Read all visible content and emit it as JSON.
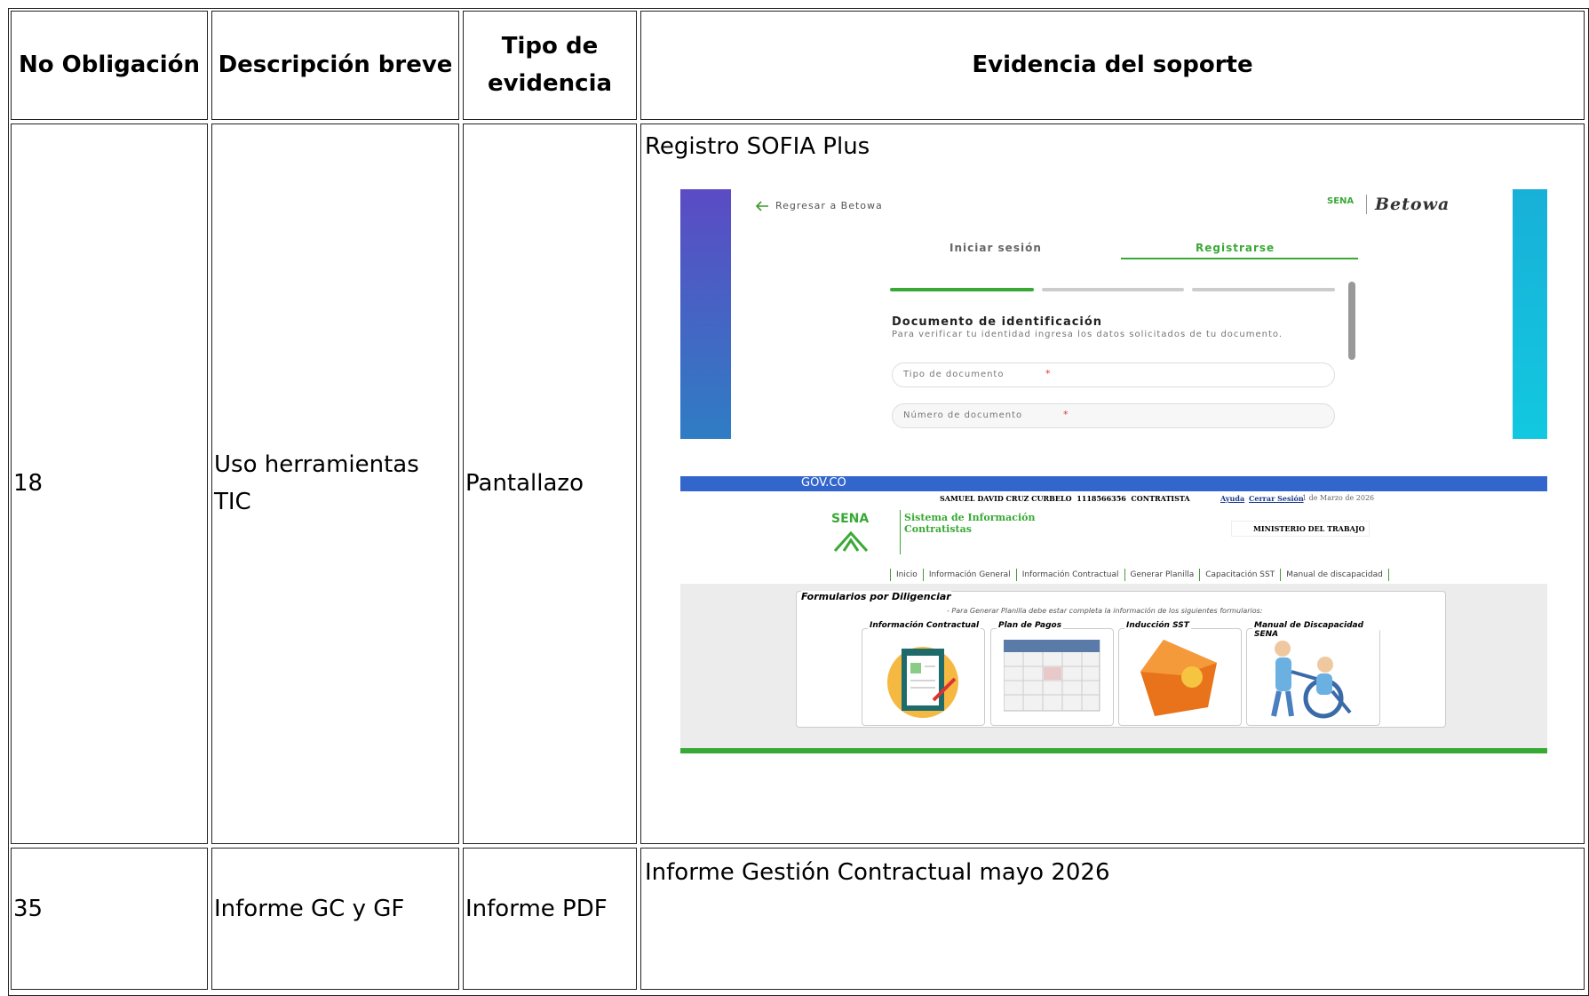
{
  "table": {
    "headers": [
      "No Obligación",
      "Descripción breve",
      "Tipo de evidencia",
      "Evidencia del soporte"
    ],
    "rows": [
      {
        "number": "18",
        "description": "Uso herramientas TIC",
        "evidence_type": "Pantallazo",
        "evidence": "Registro SOFIA Plus"
      },
      {
        "number": "35",
        "description": "Informe GC y GF",
        "evidence_type": "Informe PDF",
        "evidence": "Informe Gestión Contractual mayo 2026"
      }
    ]
  },
  "login_screenshot": {
    "back_link": "Regresar a Betowa",
    "logo_sena": "SENA",
    "brand": "Betowa",
    "tabs": [
      "Iniciar sesión",
      "Registrarse"
    ],
    "heading": "Documento de identificación",
    "description": "Para verificar tu identidad ingresa los datos solicitados de tu documento.",
    "fields": [
      "Tipo de documento",
      "Número de documento"
    ],
    "required_mark": "*"
  },
  "portal_screenshot": {
    "gov": "GOV.CO",
    "user": "SAMUEL DAVID CRUZ CURBELO  1118566356  CONTRATISTA",
    "help": "Ayuda",
    "logout": "Cerrar Sesión",
    "date": "1 de Marzo de 2026",
    "logo": "SENA",
    "system": "Sistema de Información Contratistas",
    "ministry": "MINISTERIO DEL TRABAJO",
    "nav": [
      "Inicio",
      "Información General",
      "Información Contractual",
      "Generar Planilla",
      "Capacitación SST",
      "Manual de discapacidad"
    ],
    "forms_title": "Formularios por Diligenciar",
    "forms_note": "- Para Generar Planilla debe estar completa la información de los siguientes formularios:",
    "cards": [
      "Información Contractual",
      "Plan de Pagos",
      "Inducción SST",
      "Manual de Discapacidad SENA"
    ]
  }
}
